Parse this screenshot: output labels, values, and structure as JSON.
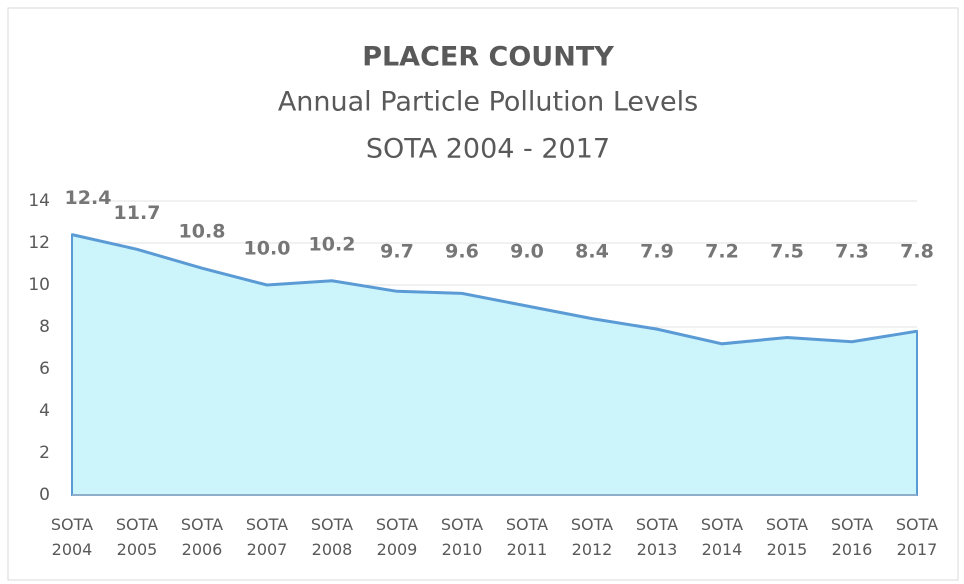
{
  "chart_data": {
    "type": "area",
    "title": "PLACER COUNTY",
    "subtitle": [
      "Annual Particle Pollution Levels",
      "SOTA 2004 - 2017"
    ],
    "categories": [
      "SOTA 2004",
      "SOTA 2005",
      "SOTA 2006",
      "SOTA 2007",
      "SOTA 2008",
      "SOTA 2009",
      "SOTA 2010",
      "SOTA 2011",
      "SOTA 2012",
      "SOTA 2013",
      "SOTA 2014",
      "SOTA 2015",
      "SOTA 2016",
      "SOTA 2017"
    ],
    "series": [
      {
        "color": "#5b9bd5",
        "fill": "#ccf4fb",
        "values": [
          12.4,
          11.7,
          10.8,
          10.0,
          10.2,
          9.7,
          9.6,
          9.0,
          8.4,
          7.9,
          7.2,
          7.5,
          7.3,
          7.8
        ],
        "value_labels": [
          "12.4",
          "11.7",
          "10.8",
          "10.0",
          "10.2",
          "9.7",
          "9.6",
          "9.0",
          "8.4",
          "7.9",
          "7.2",
          "7.5",
          "7.3",
          "7.8"
        ]
      }
    ],
    "ylim": [
      0,
      14
    ],
    "yticks": [
      0,
      2,
      4,
      6,
      8,
      10,
      12,
      14
    ],
    "grid": true
  }
}
